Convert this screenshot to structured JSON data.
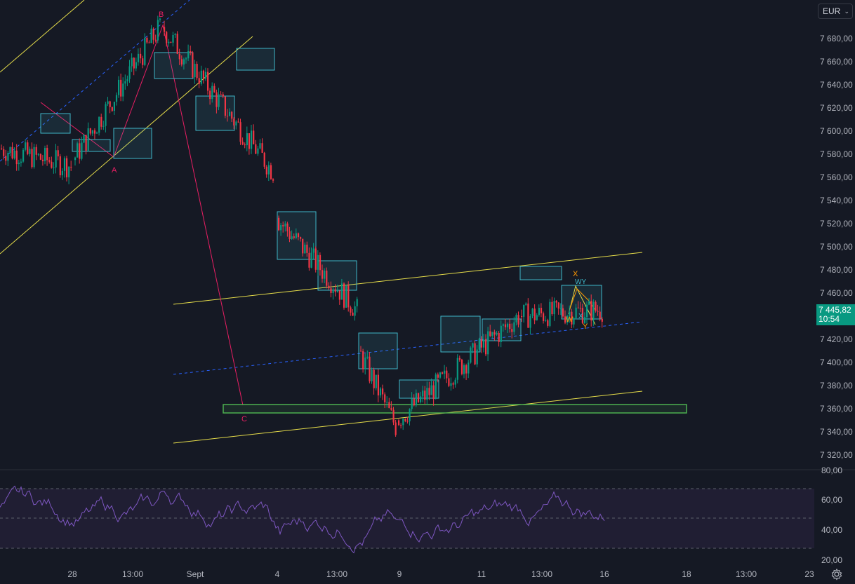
{
  "toolbar": {
    "currency": "EUR"
  },
  "price": {
    "last": "7 445,82",
    "countdown": "10:54",
    "tag_color": "#089981"
  },
  "y_axis_labels": [
    "7 680,00",
    "7 660,00",
    "7 640,00",
    "7 620,00",
    "7 600,00",
    "7 580,00",
    "7 560,00",
    "7 540,00",
    "7 520,00",
    "7 500,00",
    "7 480,00",
    "7 460,00",
    "7 440,00",
    "7 420,00",
    "7 400,00",
    "7 380,00",
    "7 360,00",
    "7 340,00",
    "7 320,00"
  ],
  "rsi_axis_labels": [
    "80,00",
    "60,00",
    "40,00",
    "20,00"
  ],
  "x_axis_labels": [
    "28",
    "13:00",
    "Sept",
    "4",
    "13:00",
    "9",
    "11",
    "13:00",
    "16",
    "18",
    "13:00",
    "23"
  ],
  "annotations": {
    "wave_a": "A",
    "wave_b": "B",
    "wave_c": "C",
    "x_label": "X",
    "wy_label": "WY",
    "w_label": "W",
    "x2_label": "X",
    "y_label": "Y"
  },
  "colors": {
    "background": "#151924",
    "up": "#089981",
    "down": "#f23645",
    "channel": "#e6dd4a",
    "wave_line": "#e91e63",
    "dashed_mid": "#2962ff",
    "zone_box": "#3fb6c7",
    "support_box": "#4caf50",
    "rsi": "#7e57c2"
  },
  "chart_data": {
    "type": "candlestick",
    "ylim": [
      7310,
      7700
    ],
    "y_ticks": [
      7320,
      7340,
      7360,
      7380,
      7400,
      7420,
      7440,
      7460,
      7480,
      7500,
      7520,
      7540,
      7560,
      7580,
      7600,
      7620,
      7640,
      7660,
      7680
    ],
    "current_price": 7445.82,
    "segments": [
      {
        "from": "27 Aug",
        "to": "29 Aug",
        "start": 7585,
        "end": 7570
      },
      {
        "from": "29 Aug",
        "to": "30 Aug",
        "start": 7575,
        "end": 7690
      },
      {
        "from": "30 Aug",
        "to": "2 Sept",
        "start": 7690,
        "end": 7565
      },
      {
        "from": "4 Sept",
        "to": "6 Sept",
        "start": 7525,
        "end": 7445
      },
      {
        "from": "6 Sept",
        "to": "9 Sept",
        "start": 7410,
        "end": 7345
      },
      {
        "from": "9 Sept",
        "to": "12 Sept",
        "start": 7350,
        "end": 7440
      },
      {
        "from": "12 Sept",
        "to": "16 Sept",
        "start": 7440,
        "end": 7445.82
      }
    ],
    "rsi": {
      "ylim": [
        20,
        80
      ],
      "levels": [
        70,
        50,
        30
      ]
    }
  }
}
